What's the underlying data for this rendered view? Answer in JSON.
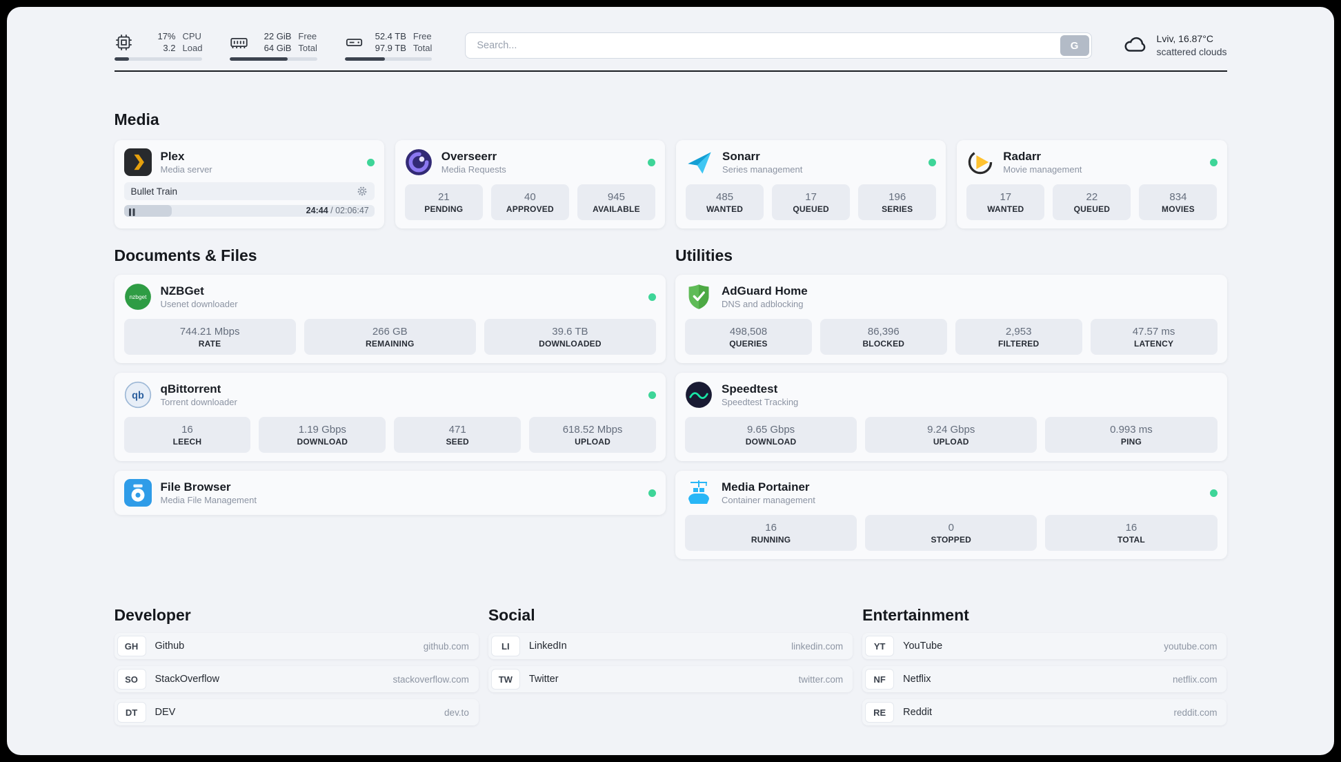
{
  "colors": {
    "status_online": "#3ed598",
    "progress_fill": "#3c434f",
    "plex_yellow": "#e5a00d",
    "search_button_bg": "#b3bbc7"
  },
  "topbar": {
    "cpu": {
      "usage": "17%",
      "load": "3.2",
      "label_top": "CPU",
      "label_bottom": "Load",
      "progress_pct": 17
    },
    "memory": {
      "free": "22 GiB",
      "total": "64 GiB",
      "label_top": "Free",
      "label_bottom": "Total",
      "progress_pct": 66
    },
    "disk": {
      "free": "52.4 TB",
      "total": "97.9 TB",
      "label_top": "Free",
      "label_bottom": "Total",
      "progress_pct": 46
    },
    "search": {
      "placeholder": "Search...",
      "button_label": "G"
    },
    "weather": {
      "location": "Lviv, 16.87°C",
      "condition": "scattered clouds"
    }
  },
  "sections": {
    "media": "Media",
    "documents": "Documents & Files",
    "utilities": "Utilities"
  },
  "media": {
    "plex": {
      "name": "Plex",
      "subtitle": "Media server",
      "now_playing": "Bullet Train",
      "elapsed": "24:44",
      "separator": " / ",
      "total": "02:06:47",
      "progress_pct": 19
    },
    "overseerr": {
      "name": "Overseerr",
      "subtitle": "Media Requests",
      "stats": [
        {
          "value": "21",
          "label": "PENDING"
        },
        {
          "value": "40",
          "label": "APPROVED"
        },
        {
          "value": "945",
          "label": "AVAILABLE"
        }
      ]
    },
    "sonarr": {
      "name": "Sonarr",
      "subtitle": "Series management",
      "stats": [
        {
          "value": "485",
          "label": "WANTED"
        },
        {
          "value": "17",
          "label": "QUEUED"
        },
        {
          "value": "196",
          "label": "SERIES"
        }
      ]
    },
    "radarr": {
      "name": "Radarr",
      "subtitle": "Movie management",
      "stats": [
        {
          "value": "17",
          "label": "WANTED"
        },
        {
          "value": "22",
          "label": "QUEUED"
        },
        {
          "value": "834",
          "label": "MOVIES"
        }
      ]
    }
  },
  "documents": {
    "nzbget": {
      "name": "NZBGet",
      "subtitle": "Usenet downloader",
      "stats": [
        {
          "value": "744.21 Mbps",
          "label": "RATE"
        },
        {
          "value": "266 GB",
          "label": "REMAINING"
        },
        {
          "value": "39.6 TB",
          "label": "DOWNLOADED"
        }
      ]
    },
    "qbittorrent": {
      "name": "qBittorrent",
      "subtitle": "Torrent downloader",
      "stats": [
        {
          "value": "16",
          "label": "LEECH"
        },
        {
          "value": "1.19 Gbps",
          "label": "DOWNLOAD"
        },
        {
          "value": "471",
          "label": "SEED"
        },
        {
          "value": "618.52 Mbps",
          "label": "UPLOAD"
        }
      ]
    },
    "filebrowser": {
      "name": "File Browser",
      "subtitle": "Media File Management"
    }
  },
  "utilities": {
    "adguard": {
      "name": "AdGuard Home",
      "subtitle": "DNS and adblocking",
      "stats": [
        {
          "value": "498,508",
          "label": "QUERIES"
        },
        {
          "value": "86,396",
          "label": "BLOCKED"
        },
        {
          "value": "2,953",
          "label": "FILTERED"
        },
        {
          "value": "47.57 ms",
          "label": "LATENCY"
        }
      ]
    },
    "speedtest": {
      "name": "Speedtest",
      "subtitle": "Speedtest Tracking",
      "stats": [
        {
          "value": "9.65 Gbps",
          "label": "DOWNLOAD"
        },
        {
          "value": "9.24 Gbps",
          "label": "UPLOAD"
        },
        {
          "value": "0.993 ms",
          "label": "PING"
        }
      ]
    },
    "portainer": {
      "name": "Media Portainer",
      "subtitle": "Container management",
      "stats": [
        {
          "value": "16",
          "label": "RUNNING"
        },
        {
          "value": "0",
          "label": "STOPPED"
        },
        {
          "value": "16",
          "label": "TOTAL"
        }
      ]
    }
  },
  "bookmarks": {
    "developer": {
      "title": "Developer",
      "items": [
        {
          "abbr": "GH",
          "name": "Github",
          "url": "github.com"
        },
        {
          "abbr": "SO",
          "name": "StackOverflow",
          "url": "stackoverflow.com"
        },
        {
          "abbr": "DT",
          "name": "DEV",
          "url": "dev.to"
        }
      ]
    },
    "social": {
      "title": "Social",
      "items": [
        {
          "abbr": "LI",
          "name": "LinkedIn",
          "url": "linkedin.com"
        },
        {
          "abbr": "TW",
          "name": "Twitter",
          "url": "twitter.com"
        }
      ]
    },
    "entertainment": {
      "title": "Entertainment",
      "items": [
        {
          "abbr": "YT",
          "name": "YouTube",
          "url": "youtube.com"
        },
        {
          "abbr": "NF",
          "name": "Netflix",
          "url": "netflix.com"
        },
        {
          "abbr": "RE",
          "name": "Reddit",
          "url": "reddit.com"
        }
      ]
    }
  }
}
